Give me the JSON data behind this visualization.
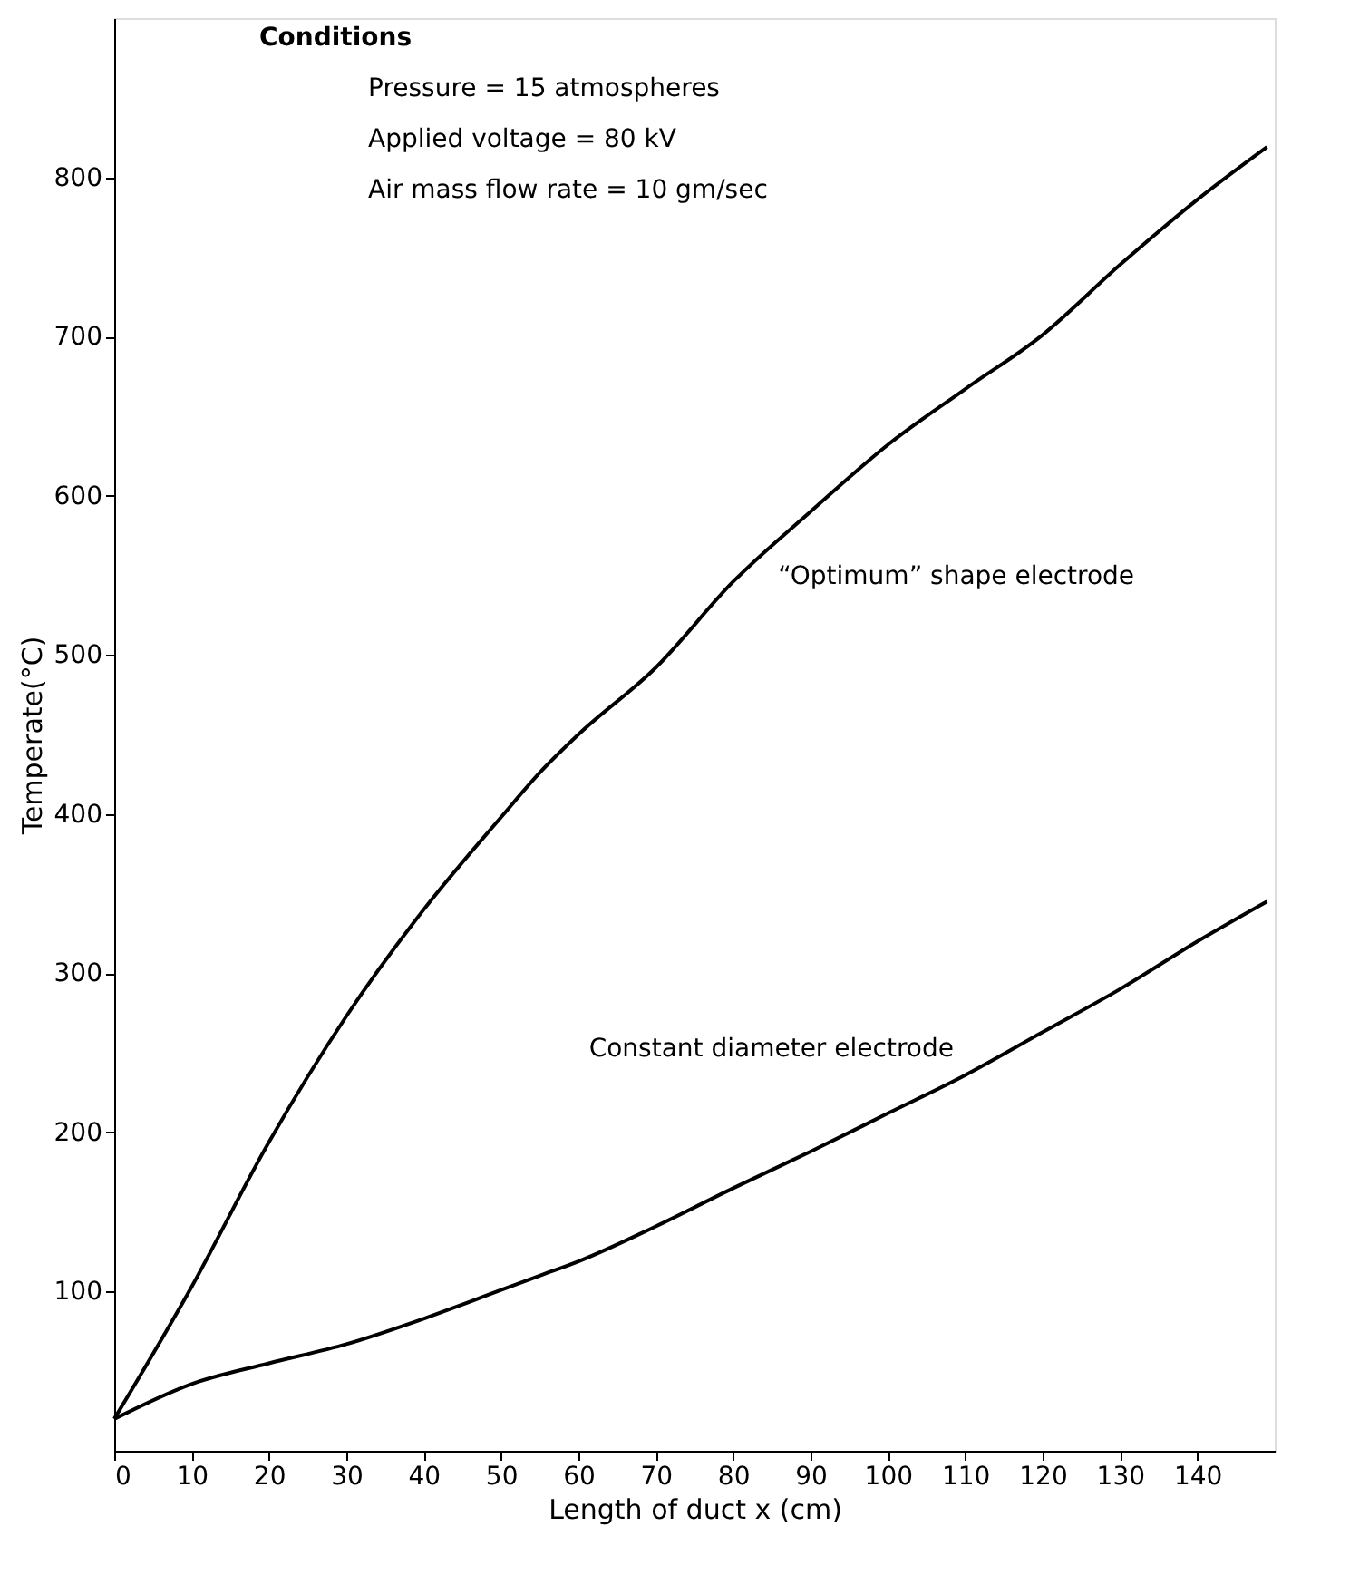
{
  "chart_data": {
    "type": "line",
    "xlabel": "Length of duct x (cm)",
    "ylabel": "Temperate(°C)",
    "x": [
      0,
      10,
      20,
      30,
      40,
      50,
      55,
      60,
      70,
      80,
      90,
      100,
      110,
      120,
      130,
      140,
      149
    ],
    "series": [
      {
        "color": "#000000",
        "values": [
          20,
          103,
          194,
          273,
          340,
          398,
          426,
          450,
          492,
          546,
          590,
          632,
          667,
          701,
          745,
          786,
          819
        ]
      },
      {
        "color": "#000000",
        "values": [
          20,
          42,
          55,
          67,
          83,
          101,
          110,
          119,
          141,
          165,
          188,
          212,
          236,
          263,
          290,
          320,
          345
        ]
      }
    ],
    "xlim": [
      0,
      150
    ],
    "ylim": [
      0,
      900
    ],
    "xticks": [
      0,
      10,
      20,
      30,
      40,
      50,
      60,
      70,
      80,
      90,
      100,
      110,
      120,
      130,
      140
    ],
    "yticks": [
      100,
      200,
      300,
      400,
      500,
      600,
      700,
      800
    ],
    "grid": false,
    "marker": "none",
    "line_style": "solid",
    "annotations": [
      "Conditions",
      "Pressure = 15 atmospheres",
      "Applied voltage = 80 kV",
      "Air mass flow rate = 10 gm/sec",
      {
        "text": "“Optimum” shape electrode",
        "x": 83,
        "y": 558
      },
      {
        "text": "Constant diameter electrode",
        "x": 99,
        "y": 207
      }
    ]
  }
}
